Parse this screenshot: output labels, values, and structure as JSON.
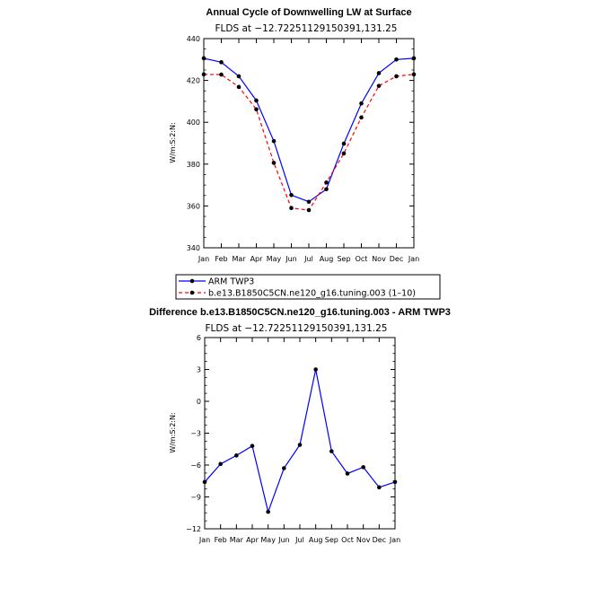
{
  "chart_data": [
    {
      "type": "line",
      "title": "Annual Cycle of Downwelling LW at Surface",
      "subtitle": "FLDS at −12.72251129150391,131.25",
      "xlabel": "",
      "ylabel": "W/m:S:2:N:",
      "categories": [
        "Jan",
        "Feb",
        "Mar",
        "Apr",
        "May",
        "Jun",
        "Jul",
        "Aug",
        "Sep",
        "Oct",
        "Nov",
        "Dec",
        "Jan"
      ],
      "ylim": [
        340,
        440
      ],
      "yticks": [
        "440",
        "420",
        "400",
        "380",
        "360",
        "340"
      ],
      "series": [
        {
          "name": "ARM TWP3",
          "color": "#0000ff",
          "dash": "solid",
          "values": [
            430.6,
            428.7,
            422.0,
            410.4,
            391.0,
            365.2,
            362.0,
            368.0,
            389.8,
            409.0,
            423.5,
            430.0,
            430.6
          ]
        },
        {
          "name": "b.e13.B1850C5CN.ne120_g16.tuning.003 (1–10)",
          "color": "#ff0000",
          "dash": "dashed",
          "values": [
            422.9,
            422.8,
            416.9,
            406.2,
            380.6,
            359.0,
            358.0,
            371.2,
            385.1,
            402.3,
            417.4,
            422.0,
            422.9
          ]
        }
      ],
      "legend": "below"
    },
    {
      "type": "line",
      "title": "Difference b.e13.B1850C5CN.ne120_g16.tuning.003 - ARM TWP3",
      "subtitle": "FLDS at −12.72251129150391,131.25",
      "xlabel": "",
      "ylabel": "W/m:S:2:N:",
      "categories": [
        "Jan",
        "Feb",
        "Mar",
        "Apr",
        "May",
        "Jun",
        "Jul",
        "Aug",
        "Sep",
        "Oct",
        "Nov",
        "Dec",
        "Jan"
      ],
      "ylim": [
        -12,
        6
      ],
      "yticks": [
        "6",
        "3",
        "0",
        "−3",
        "−6",
        "−9",
        "−12"
      ],
      "series": [
        {
          "name": "Difference",
          "color": "#0000ff",
          "dash": "solid",
          "values": [
            -7.6,
            -5.9,
            -5.1,
            -4.2,
            -10.4,
            -6.3,
            -4.1,
            3.0,
            -4.7,
            -6.8,
            -6.2,
            -8.1,
            -7.6
          ]
        }
      ]
    }
  ]
}
